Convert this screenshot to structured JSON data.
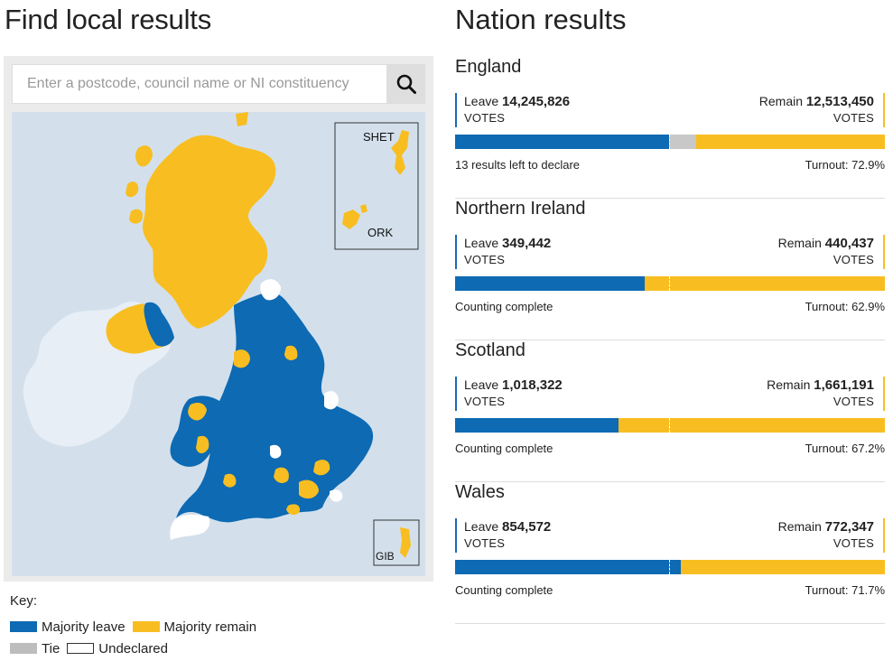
{
  "local": {
    "title": "Find local results",
    "search_placeholder": "Enter a postcode, council name or NI constituency",
    "insets": {
      "shet": "SHET",
      "ork": "ORK",
      "gib": "GIB"
    },
    "key": {
      "title": "Key:",
      "items": [
        {
          "label": "Majority leave",
          "color": "#0d6ab3"
        },
        {
          "label": "Majority remain",
          "color": "#f8be21"
        },
        {
          "label": "Tie",
          "color": "#bdbdbd"
        },
        {
          "label": "Undeclared",
          "color": "#ffffff"
        }
      ]
    },
    "icons": {
      "search": "search-icon"
    }
  },
  "nation": {
    "title": "Nation results",
    "colors": {
      "leave": "#0d6ab3",
      "remain": "#f8be21",
      "tie": "#c8c8c8"
    },
    "items": [
      {
        "name": "England",
        "leave_label": "Leave",
        "leave_votes": "14,245,826",
        "remain_label": "Remain",
        "remain_votes": "12,513,450",
        "votes_label": "VOTES",
        "leave_share": 0.498,
        "tie_share": 0.062,
        "status": "13 results left to declare",
        "turnout": "Turnout: 72.9%"
      },
      {
        "name": "Northern Ireland",
        "leave_label": "Leave",
        "leave_votes": "349,442",
        "remain_label": "Remain",
        "remain_votes": "440,437",
        "votes_label": "VOTES",
        "leave_share": 0.442,
        "tie_share": 0,
        "status": "Counting complete",
        "turnout": "Turnout: 62.9%"
      },
      {
        "name": "Scotland",
        "leave_label": "Leave",
        "leave_votes": "1,018,322",
        "remain_label": "Remain",
        "remain_votes": "1,661,191",
        "votes_label": "VOTES",
        "leave_share": 0.38,
        "tie_share": 0,
        "status": "Counting complete",
        "turnout": "Turnout: 67.2%"
      },
      {
        "name": "Wales",
        "leave_label": "Leave",
        "leave_votes": "854,572",
        "remain_label": "Remain",
        "remain_votes": "772,347",
        "votes_label": "VOTES",
        "leave_share": 0.525,
        "tie_share": 0,
        "status": "Counting complete",
        "turnout": "Turnout: 71.7%"
      }
    ]
  }
}
